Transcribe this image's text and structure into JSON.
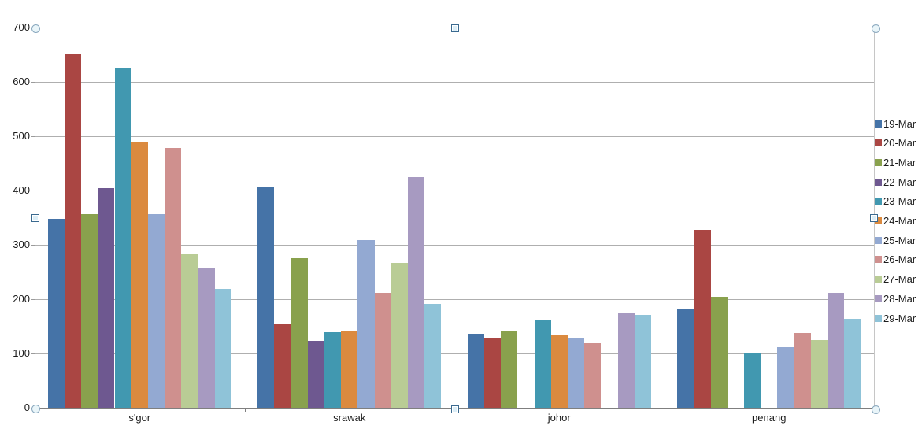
{
  "chart_data": {
    "type": "bar",
    "title": "",
    "xlabel": "",
    "ylabel": "",
    "categories": [
      "s'gor",
      "srawak",
      "johor",
      "penang"
    ],
    "series": [
      {
        "name": "19-Mar",
        "color": "#4573A7",
        "values": [
          348,
          406,
          136,
          181
        ]
      },
      {
        "name": "20-Mar",
        "color": "#AA4643",
        "values": [
          651,
          154,
          129,
          328
        ]
      },
      {
        "name": "21-Mar",
        "color": "#89A14D",
        "values": [
          356,
          276,
          140,
          205
        ]
      },
      {
        "name": "22-Mar",
        "color": "#6E5890",
        "values": [
          404,
          123,
          0,
          0
        ]
      },
      {
        "name": "23-Mar",
        "color": "#4198B0",
        "values": [
          625,
          139,
          161,
          100
        ]
      },
      {
        "name": "24-Mar",
        "color": "#DB8A3F",
        "values": [
          490,
          141,
          135,
          0
        ]
      },
      {
        "name": "25-Mar",
        "color": "#93A9D2",
        "values": [
          356,
          308,
          129,
          112
        ]
      },
      {
        "name": "26-Mar",
        "color": "#CF908E",
        "values": [
          478,
          212,
          119,
          137
        ]
      },
      {
        "name": "27-Mar",
        "color": "#B9CC95",
        "values": [
          283,
          267,
          0,
          125
        ]
      },
      {
        "name": "28-Mar",
        "color": "#A79AC1",
        "values": [
          256,
          425,
          175,
          212
        ]
      },
      {
        "name": "29-Mar",
        "color": "#8FC3D8",
        "values": [
          219,
          191,
          171,
          164
        ]
      }
    ],
    "ylim": [
      0,
      700
    ],
    "yticks": [
      0,
      100,
      200,
      300,
      400,
      500,
      600,
      700
    ],
    "grid": true,
    "legend_position": "right"
  },
  "ui": {
    "colors": {
      "background": "#FFFFFF",
      "gridline": "#AFAFAF",
      "axis_line": "#7F7F7F",
      "y_axis_line": "#9B9B9B",
      "plot_right_border": "#C6C6C6",
      "text": "#1C1C1C",
      "handle_square_border": "#3A6A90",
      "handle_square_fill": "#DCEEF7",
      "handle_circle_border": "#8AA8BE",
      "handle_circle_fill": "#E9F5F9"
    },
    "selection_handles": [
      "top-left",
      "top-center",
      "top-right",
      "middle-left",
      "middle-right",
      "bottom-left",
      "bottom-center",
      "bottom-right"
    ]
  }
}
